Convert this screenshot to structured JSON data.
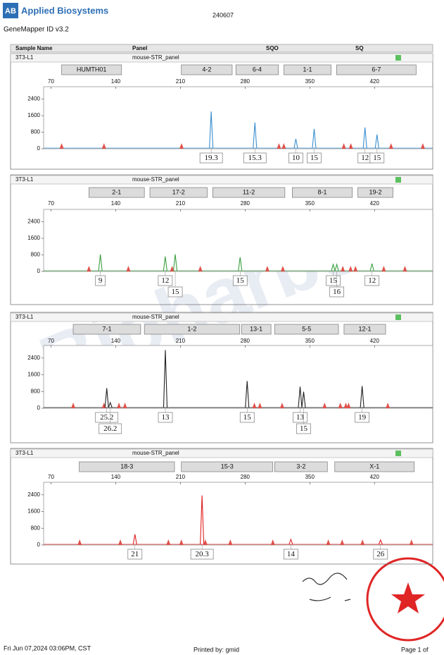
{
  "header": {
    "brand": "Applied Biosystems",
    "logo": "AB",
    "software": "GeneMapper ID v3.2",
    "run": "240607"
  },
  "columns": [
    "Sample Name",
    "Panel",
    "SQO",
    "SQ"
  ],
  "watermark": "Bioharbor",
  "footer": {
    "date": "Fri Jun 07,2024 03:06PM, CST",
    "printed_by": "Printed by: gmid",
    "page": "Page 1 of"
  },
  "chart_data": [
    {
      "type": "line",
      "sample": "3T3-L1",
      "panel": "mouse-STR_panel",
      "color": "#3a8fd0",
      "loci": [
        {
          "name": "HUMTH01",
          "range": [
            81.5,
            146.3
          ]
        },
        {
          "name": "4-2",
          "range": [
            211,
            266
          ]
        },
        {
          "name": "6-4",
          "range": [
            270,
            316
          ]
        },
        {
          "name": "1-1",
          "range": [
            322,
            373
          ]
        },
        {
          "name": "6-7",
          "range": [
            379,
            465
          ]
        }
      ],
      "x": [
        243.3,
        290.6,
        334.9,
        354.7,
        409.7,
        422.7
      ],
      "values": [
        1800,
        1270,
        480,
        960,
        1030,
        690
      ],
      "alleles": [
        "19.3",
        "15.3",
        "10",
        "15",
        "12",
        "15"
      ],
      "ladder": [
        81.5,
        127.3,
        211.2,
        316.6,
        321.9,
        386.8,
        394.4,
        437.9,
        472.3
      ],
      "xlim": [
        62,
        483
      ],
      "xticks": [
        70,
        140,
        210,
        280,
        350,
        420
      ],
      "ylim": [
        0,
        3000
      ],
      "yticks": [
        0,
        800,
        1600,
        2400
      ]
    },
    {
      "type": "line",
      "sample": "3T3-L1",
      "panel": "mouse-STR_panel",
      "color": "#3aa040",
      "loci": [
        {
          "name": "2-1",
          "range": [
            111,
            171
          ]
        },
        {
          "name": "17-2",
          "range": [
            177,
            239
          ]
        },
        {
          "name": "11-2",
          "range": [
            245,
            323
          ]
        },
        {
          "name": "8-1",
          "range": [
            331,
            396
          ]
        },
        {
          "name": "19-2",
          "range": [
            402,
            440
          ]
        }
      ],
      "x": [
        123.4,
        193.6,
        204.4,
        274.6,
        375.3,
        379.2,
        417.3
      ],
      "values": [
        820,
        720,
        830,
        690,
        340,
        340,
        380
      ],
      "alleles": [
        "9",
        "12",
        "15",
        "15",
        "15",
        "16",
        "12"
      ],
      "ladder": [
        111,
        153.7,
        201,
        231.5,
        304,
        320.8,
        385.7,
        394.1,
        399.4,
        430,
        452.9
      ],
      "xlim": [
        62,
        483
      ],
      "xticks": [
        70,
        140,
        210,
        280,
        350,
        420
      ],
      "ylim": [
        0,
        3000
      ],
      "yticks": [
        0,
        800,
        1600,
        2400
      ]
    },
    {
      "type": "line",
      "sample": "3T3-L1",
      "panel": "mouse-STR_panel",
      "color": "#222222",
      "loci": [
        {
          "name": "7-1",
          "range": [
            94,
            167
          ]
        },
        {
          "name": "1-2",
          "range": [
            171,
            274
          ]
        },
        {
          "name": "13-1",
          "range": [
            276,
            308
          ]
        },
        {
          "name": "5-5",
          "range": [
            312,
            381
          ]
        },
        {
          "name": "12-1",
          "range": [
            387,
            432
          ]
        }
      ],
      "x": [
        130.3,
        134.1,
        193.7,
        282.2,
        339.5,
        343.3,
        406.6
      ],
      "values": [
        960,
        270,
        2780,
        1300,
        1030,
        790,
        1060
      ],
      "alleles": [
        "25.2",
        "26.2",
        "13",
        "15",
        "13",
        "15",
        "19"
      ],
      "ladder": [
        94,
        127.3,
        143.5,
        150,
        290,
        296,
        320,
        366,
        383,
        389,
        392,
        434.4
      ],
      "xlim": [
        62,
        483
      ],
      "xticks": [
        70,
        140,
        210,
        280,
        350,
        420
      ],
      "ylim": [
        0,
        3000
      ],
      "yticks": [
        0,
        800,
        1600,
        2400
      ]
    },
    {
      "type": "line",
      "sample": "3T3-L1",
      "panel": "mouse-STR_panel",
      "color": "#e02020",
      "loci": [
        {
          "name": "18-3",
          "range": [
            100.5,
            203.6
          ]
        },
        {
          "name": "15-3",
          "range": [
            211,
            310
          ]
        },
        {
          "name": "3-2",
          "range": [
            312,
            369
          ]
        },
        {
          "name": "X-1",
          "range": [
            377,
            463
          ]
        }
      ],
      "x": [
        160.8,
        233.4,
        329.5,
        426.5
      ],
      "values": [
        510,
        2370,
        270,
        240
      ],
      "alleles": [
        "21",
        "20.3",
        "14",
        "26"
      ],
      "ladder": [
        101,
        145,
        197,
        211,
        237,
        264,
        310,
        370,
        385,
        407,
        460
      ],
      "xlim": [
        62,
        483
      ],
      "xticks": [
        70,
        140,
        210,
        280,
        350,
        420
      ],
      "ylim": [
        0,
        3000
      ],
      "yticks": [
        0,
        800,
        1600,
        2400
      ]
    }
  ]
}
